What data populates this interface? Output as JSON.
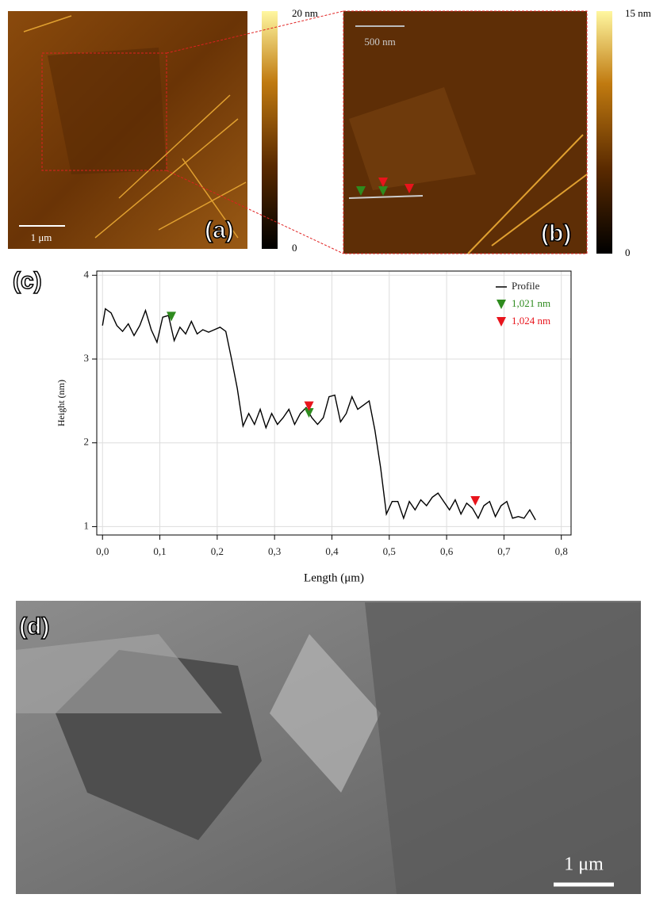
{
  "panels": {
    "a": {
      "label": "(a)",
      "scale_bar": "1 μm",
      "colorbar_max": "20 nm",
      "colorbar_min": "0"
    },
    "b": {
      "label": "(b)",
      "scale_bar": "500 nm",
      "colorbar_max": "15 nm",
      "colorbar_min": "0"
    },
    "c": {
      "label": "(c)"
    },
    "d": {
      "label": "(d)",
      "scale_bar": "1 μm"
    }
  },
  "chart_data": {
    "type": "line",
    "xlabel": "Length (μm)",
    "ylabel": "Height (nm)",
    "xlim": [
      -0.01,
      0.817
    ],
    "ylim": [
      0.9,
      4.05
    ],
    "xticks": [
      {
        "value": 0,
        "label": "0,0"
      },
      {
        "value": 0.1,
        "label": "0,1"
      },
      {
        "value": 0.2,
        "label": "0,2"
      },
      {
        "value": 0.3,
        "label": "0,3"
      },
      {
        "value": 0.4,
        "label": "0,4"
      },
      {
        "value": 0.5,
        "label": "0,5"
      },
      {
        "value": 0.6,
        "label": "0,6"
      },
      {
        "value": 0.7,
        "label": "0,7"
      },
      {
        "value": 0.8,
        "label": "0,8"
      }
    ],
    "yticks": [
      1,
      2,
      3,
      4
    ],
    "grid": true,
    "legend": "top-right",
    "series": [
      {
        "name": "Profile",
        "color": "#000000",
        "style": "line",
        "x": [
          0,
          0.005,
          0.015,
          0.025,
          0.035,
          0.045,
          0.055,
          0.065,
          0.075,
          0.085,
          0.095,
          0.105,
          0.115,
          0.125,
          0.135,
          0.145,
          0.155,
          0.165,
          0.175,
          0.185,
          0.195,
          0.205,
          0.215,
          0.225,
          0.235,
          0.245,
          0.255,
          0.265,
          0.275,
          0.285,
          0.295,
          0.305,
          0.315,
          0.325,
          0.335,
          0.345,
          0.355,
          0.365,
          0.375,
          0.385,
          0.395,
          0.405,
          0.415,
          0.425,
          0.435,
          0.445,
          0.455,
          0.465,
          0.475,
          0.485,
          0.495,
          0.505,
          0.515,
          0.525,
          0.535,
          0.545,
          0.555,
          0.565,
          0.575,
          0.585,
          0.595,
          0.605,
          0.615,
          0.625,
          0.635,
          0.645,
          0.655,
          0.665,
          0.675,
          0.685,
          0.695,
          0.705,
          0.715,
          0.725,
          0.735,
          0.745,
          0.755
        ],
        "values": [
          3.4,
          3.6,
          3.55,
          3.4,
          3.33,
          3.42,
          3.28,
          3.4,
          3.58,
          3.35,
          3.2,
          3.5,
          3.52,
          3.22,
          3.38,
          3.3,
          3.45,
          3.3,
          3.35,
          3.32,
          3.35,
          3.38,
          3.33,
          3.0,
          2.65,
          2.2,
          2.35,
          2.22,
          2.4,
          2.18,
          2.35,
          2.22,
          2.3,
          2.4,
          2.22,
          2.35,
          2.42,
          2.3,
          2.22,
          2.3,
          2.55,
          2.57,
          2.25,
          2.35,
          2.55,
          2.4,
          2.45,
          2.5,
          2.15,
          1.7,
          1.15,
          1.3,
          1.3,
          1.1,
          1.3,
          1.2,
          1.32,
          1.25,
          1.35,
          1.4,
          1.3,
          1.2,
          1.32,
          1.15,
          1.28,
          1.22,
          1.1,
          1.25,
          1.3,
          1.12,
          1.25,
          1.3,
          1.1,
          1.12,
          1.1,
          1.2,
          1.08
        ]
      },
      {
        "name": "1,021 nm",
        "color": "#2e8b1e",
        "style": "marker",
        "x": [
          0.12,
          0.36
        ],
        "values": [
          3.45,
          2.3
        ]
      },
      {
        "name": "1,024 nm",
        "color": "#e8141c",
        "style": "marker",
        "x": [
          0.36,
          0.65
        ],
        "values": [
          2.38,
          1.25
        ]
      }
    ]
  }
}
